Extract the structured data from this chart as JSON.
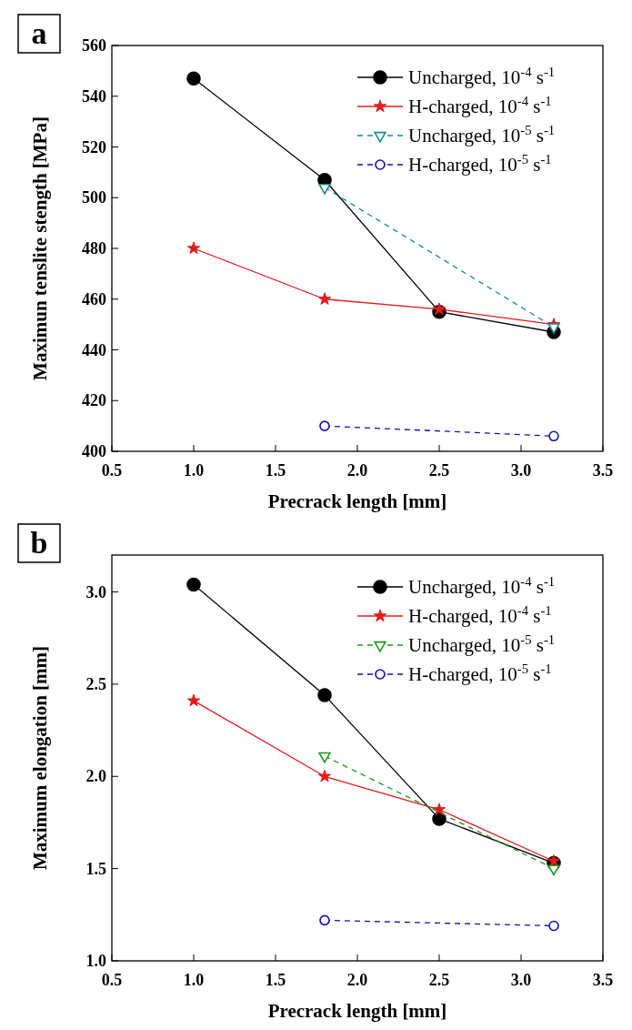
{
  "chart_data": [
    {
      "type": "line",
      "annotations": [
        "a"
      ],
      "xlabel": "Precrack length [mm]",
      "ylabel": "Maximun tenslite stength  [MPa]",
      "xlim": [
        0.5,
        3.5
      ],
      "xticks": [
        {
          "value": 0.5,
          "label": "0.5"
        },
        {
          "value": 1,
          "label": "1.0"
        },
        {
          "value": 1.5,
          "label": "1.5"
        },
        {
          "value": 2,
          "label": "2.0"
        },
        {
          "value": 2.5,
          "label": "2.5"
        },
        {
          "value": 3,
          "label": "3.0"
        },
        {
          "value": 3.5,
          "label": "3.5"
        }
      ],
      "ylim": [
        400,
        560
      ],
      "yticks": [
        400,
        420,
        440,
        460,
        480,
        500,
        520,
        540,
        560
      ],
      "legend": "top right",
      "series": [
        {
          "name": "Uncharged, 10$^{-4}$ s$^{-1}$",
          "color": "#000000",
          "marker": "circle",
          "line_style": "solid",
          "x": [
            1.0,
            1.8,
            2.5,
            3.2
          ],
          "values": [
            547,
            507,
            455,
            447
          ]
        },
        {
          "name": "H-charged, 10$^{-4}$ s$^{-1}$",
          "color": "#e31a1c",
          "marker": "star",
          "line_style": "solid",
          "x": [
            1.0,
            1.8,
            2.5,
            3.2
          ],
          "values": [
            480,
            460,
            456,
            450
          ]
        },
        {
          "name": "Uncharged, 10$^{-5}$ s$^{-1}$",
          "color": "#1a8a8a",
          "marker": "triangle",
          "line_style": "dashed",
          "x": [
            1.8,
            3.2
          ],
          "values": [
            504,
            449
          ]
        },
        {
          "name": "H-charged, 10$^{-5}$ s$^{-1}$",
          "color": "#1010b0",
          "marker": "circle",
          "line_style": "dashed",
          "x": [
            1.8,
            3.2
          ],
          "values": [
            410,
            406
          ]
        }
      ]
    },
    {
      "type": "line",
      "annotations": [
        "b"
      ],
      "xlabel": "Precrack length [mm]",
      "ylabel": "Maximum elongation [mm]",
      "xlim": [
        0.5,
        3.5
      ],
      "xticks": [
        {
          "value": 0.5,
          "label": "0.5"
        },
        {
          "value": 1,
          "label": "1.0"
        },
        {
          "value": 1.5,
          "label": "1.5"
        },
        {
          "value": 2,
          "label": "2.0"
        },
        {
          "value": 2.5,
          "label": "2.5"
        },
        {
          "value": 3,
          "label": "3.0"
        },
        {
          "value": 3.5,
          "label": "3.5"
        }
      ],
      "ylim": [
        1.0,
        3.2
      ],
      "yticks": [
        {
          "value": 1,
          "label": "1.0"
        },
        {
          "value": 1.5,
          "label": "1.5"
        },
        {
          "value": 2,
          "label": "2.0"
        },
        {
          "value": 2.5,
          "label": "2.5"
        },
        {
          "value": 3,
          "label": "3.0"
        }
      ],
      "legend": "top right",
      "series": [
        {
          "name": "Uncharged, 10$^{-4}$ s$^{-1}$",
          "color": "#000000",
          "marker": "circle",
          "line_style": "solid",
          "x": [
            1.0,
            1.8,
            2.5,
            3.2
          ],
          "values": [
            3.04,
            2.44,
            1.77,
            1.53
          ]
        },
        {
          "name": "H-charged, 10$^{-4}$ s$^{-1}$",
          "color": "#e31a1c",
          "marker": "star",
          "line_style": "solid",
          "x": [
            1.0,
            1.8,
            2.5,
            3.2
          ],
          "values": [
            2.41,
            2.0,
            1.82,
            1.54
          ]
        },
        {
          "name": "Uncharged, 10$^{-5}$ s$^{-1}$",
          "color": "#1a9a1a",
          "marker": "triangle",
          "line_style": "dashed",
          "x": [
            1.8,
            3.2
          ],
          "values": [
            2.11,
            1.5
          ]
        },
        {
          "name": "H-charged, 10$^{-5}$ s$^{-1}$",
          "color": "#1010b0",
          "marker": "circle",
          "line_style": "dashed",
          "x": [
            1.8,
            3.2
          ],
          "values": [
            1.22,
            1.19
          ]
        }
      ]
    }
  ]
}
